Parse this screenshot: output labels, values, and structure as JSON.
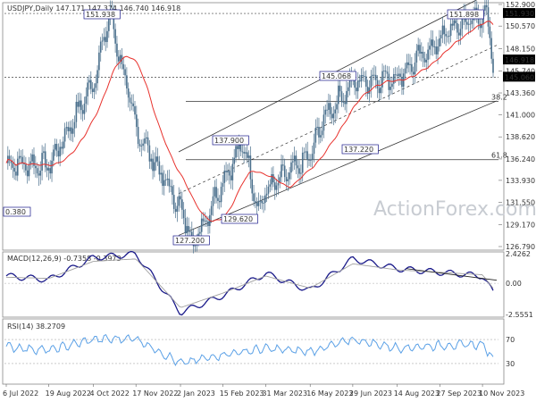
{
  "main_panel": {
    "header_text": "USDJPY,Daily 147.171 147.374 146.740 146.918",
    "price_ticks": [
      "152.900",
      "150.570",
      "148.150",
      "145.740",
      "143.360",
      "141.000",
      "138.620",
      "136.240",
      "133.930",
      "131.550",
      "129.170",
      "126.790"
    ],
    "current_price": "146.918",
    "support_price": "145.060",
    "resistance_price": "151.930",
    "fib_38_label": "38.2",
    "fib_61_label": "61.8",
    "watermark": "ActionForex.com",
    "annotations": [
      {
        "text": "151.938",
        "price": 151.938
      },
      {
        "text": "151.898",
        "price": 151.898
      },
      {
        "text": "145.068",
        "price": 145.068
      },
      {
        "text": "137.900",
        "price": 137.9
      },
      {
        "text": "137.220",
        "price": 137.22
      },
      {
        "text": "129.620",
        "price": 129.62
      },
      {
        "text": "127.200",
        "price": 127.2
      },
      {
        "text": "0.380",
        "price": 130.38
      }
    ]
  },
  "macd_panel": {
    "header_text": "MACD(12,26,9) -0.7358 -0.3973",
    "ticks": [
      "2.4262",
      "0.00",
      "-2.5551"
    ],
    "current_value": "0.00"
  },
  "rsi_panel": {
    "header_text": "RSI(14) 38.2709",
    "ticks": [
      "70",
      "30"
    ]
  },
  "x_axis": {
    "labels": [
      "6 Jul 2022",
      "19 Aug 2022",
      "4 Oct 2022",
      "17 Nov 2022",
      "2 Jan 2023",
      "15 Feb 2023",
      "31 Mar 2023",
      "16 May 2023",
      "29 Jun 2023",
      "14 Aug 2023",
      "27 Sep 2023",
      "10 Nov 2023"
    ]
  },
  "colors": {
    "candle": "#4a6f8c",
    "ma": "#e8322d",
    "macd_line": "#1a1a8a",
    "signal_line": "#a0a0a0",
    "rsi_line": "#5aa0e6",
    "channel": "#333333",
    "current_badge": "#000000",
    "label_box_border": "#1a1a8a"
  },
  "chart_data": [
    {
      "type": "line",
      "title": "USDJPY,Daily",
      "xlabel": "",
      "ylabel": "",
      "ylim": [
        126.79,
        152.9
      ],
      "x": [
        "6 Jul 2022",
        "19 Aug 2022",
        "4 Oct 2022",
        "21 Oct 2022",
        "17 Nov 2022",
        "2 Jan 2023",
        "16 Jan 2023",
        "15 Feb 2023",
        "8 Mar 2023",
        "24 Mar 2023",
        "31 Mar 2023",
        "16 May 2023",
        "30 May 2023",
        "29 Jun 2023",
        "14 Aug 2023",
        "27 Sep 2023",
        "2 Oct 2023",
        "31 Oct 2023",
        "13 Nov 2023",
        "21 Nov 2023"
      ],
      "series": [
        {
          "name": "USDJPY close",
          "values": [
            135.8,
            135.5,
            144.5,
            151.9,
            139.5,
            130.8,
            127.2,
            134.0,
            137.9,
            130.6,
            132.8,
            136.5,
            140.7,
            144.5,
            145.1,
            149.0,
            149.8,
            151.4,
            151.9,
            146.9
          ]
        }
      ],
      "levels": [
        {
          "label": "151.930",
          "value": 151.93
        },
        {
          "label": "145.060",
          "value": 145.06
        },
        {
          "label": "38.2",
          "value": 142.46
        },
        {
          "label": "61.8",
          "value": 136.16
        }
      ]
    },
    {
      "type": "line",
      "title": "MACD(12,26,9) -0.7358 -0.3973",
      "ylim": [
        -2.5551,
        2.4262
      ],
      "x": [
        "6 Jul 2022",
        "19 Aug 2022",
        "4 Oct 2022",
        "17 Nov 2022",
        "2 Jan 2023",
        "15 Feb 2023",
        "31 Mar 2023",
        "16 May 2023",
        "29 Jun 2023",
        "14 Aug 2023",
        "27 Sep 2023",
        "10 Nov 2023",
        "21 Nov 2023"
      ],
      "series": [
        {
          "name": "MACD",
          "values": [
            0.6,
            0.3,
            2.1,
            2.4,
            -2.4,
            -1.0,
            0.8,
            -0.6,
            2.0,
            1.2,
            0.9,
            0.6,
            -0.74
          ]
        },
        {
          "name": "Signal",
          "values": [
            0.5,
            0.4,
            1.8,
            2.0,
            -2.0,
            -0.8,
            0.6,
            -0.4,
            1.6,
            1.1,
            0.9,
            0.7,
            -0.4
          ]
        }
      ]
    },
    {
      "type": "line",
      "title": "RSI(14) 38.2709",
      "ylim": [
        0,
        100
      ],
      "x": [
        "6 Jul 2022",
        "19 Aug 2022",
        "4 Oct 2022",
        "17 Nov 2022",
        "2 Jan 2023",
        "15 Feb 2023",
        "31 Mar 2023",
        "16 May 2023",
        "29 Jun 2023",
        "14 Aug 2023",
        "27 Sep 2023",
        "10 Nov 2023",
        "21 Nov 2023"
      ],
      "series": [
        {
          "name": "RSI",
          "values": [
            58,
            52,
            70,
            72,
            30,
            45,
            55,
            50,
            70,
            56,
            60,
            62,
            38.27
          ]
        }
      ]
    }
  ]
}
